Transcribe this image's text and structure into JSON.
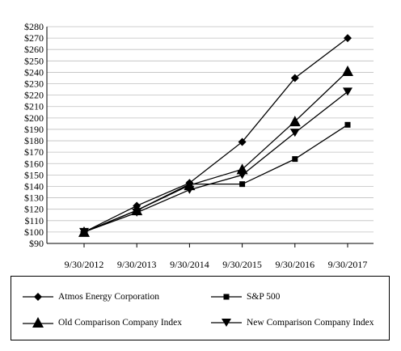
{
  "chart_data": {
    "type": "line",
    "title": "",
    "xlabel": "",
    "ylabel": "",
    "categories": [
      "9/30/2012",
      "9/30/2013",
      "9/30/2014",
      "9/30/2015",
      "9/30/2016",
      "9/30/2017"
    ],
    "ylim": [
      90,
      280
    ],
    "ytick_step": 10,
    "ytick_prefix": "$",
    "grid": "horizontal",
    "legend_position": "bottom",
    "series": [
      {
        "name": "Atmos Energy Corporation",
        "marker": "diamond",
        "values": [
          100,
          123,
          143,
          179,
          235,
          270
        ]
      },
      {
        "name": "S&P 500",
        "marker": "square",
        "values": [
          100,
          119,
          142,
          142,
          164,
          194
        ]
      },
      {
        "name": "Old Comparison Company Index",
        "marker": "triangle-up",
        "values": [
          100,
          119,
          141,
          155,
          197,
          241
        ]
      },
      {
        "name": "New Comparison Company Index",
        "marker": "triangle-down",
        "values": [
          100,
          117,
          137,
          150,
          187,
          223
        ]
      }
    ],
    "colors": {
      "line": "#000000",
      "grid": "#bfbfbf",
      "axis": "#000000"
    }
  }
}
